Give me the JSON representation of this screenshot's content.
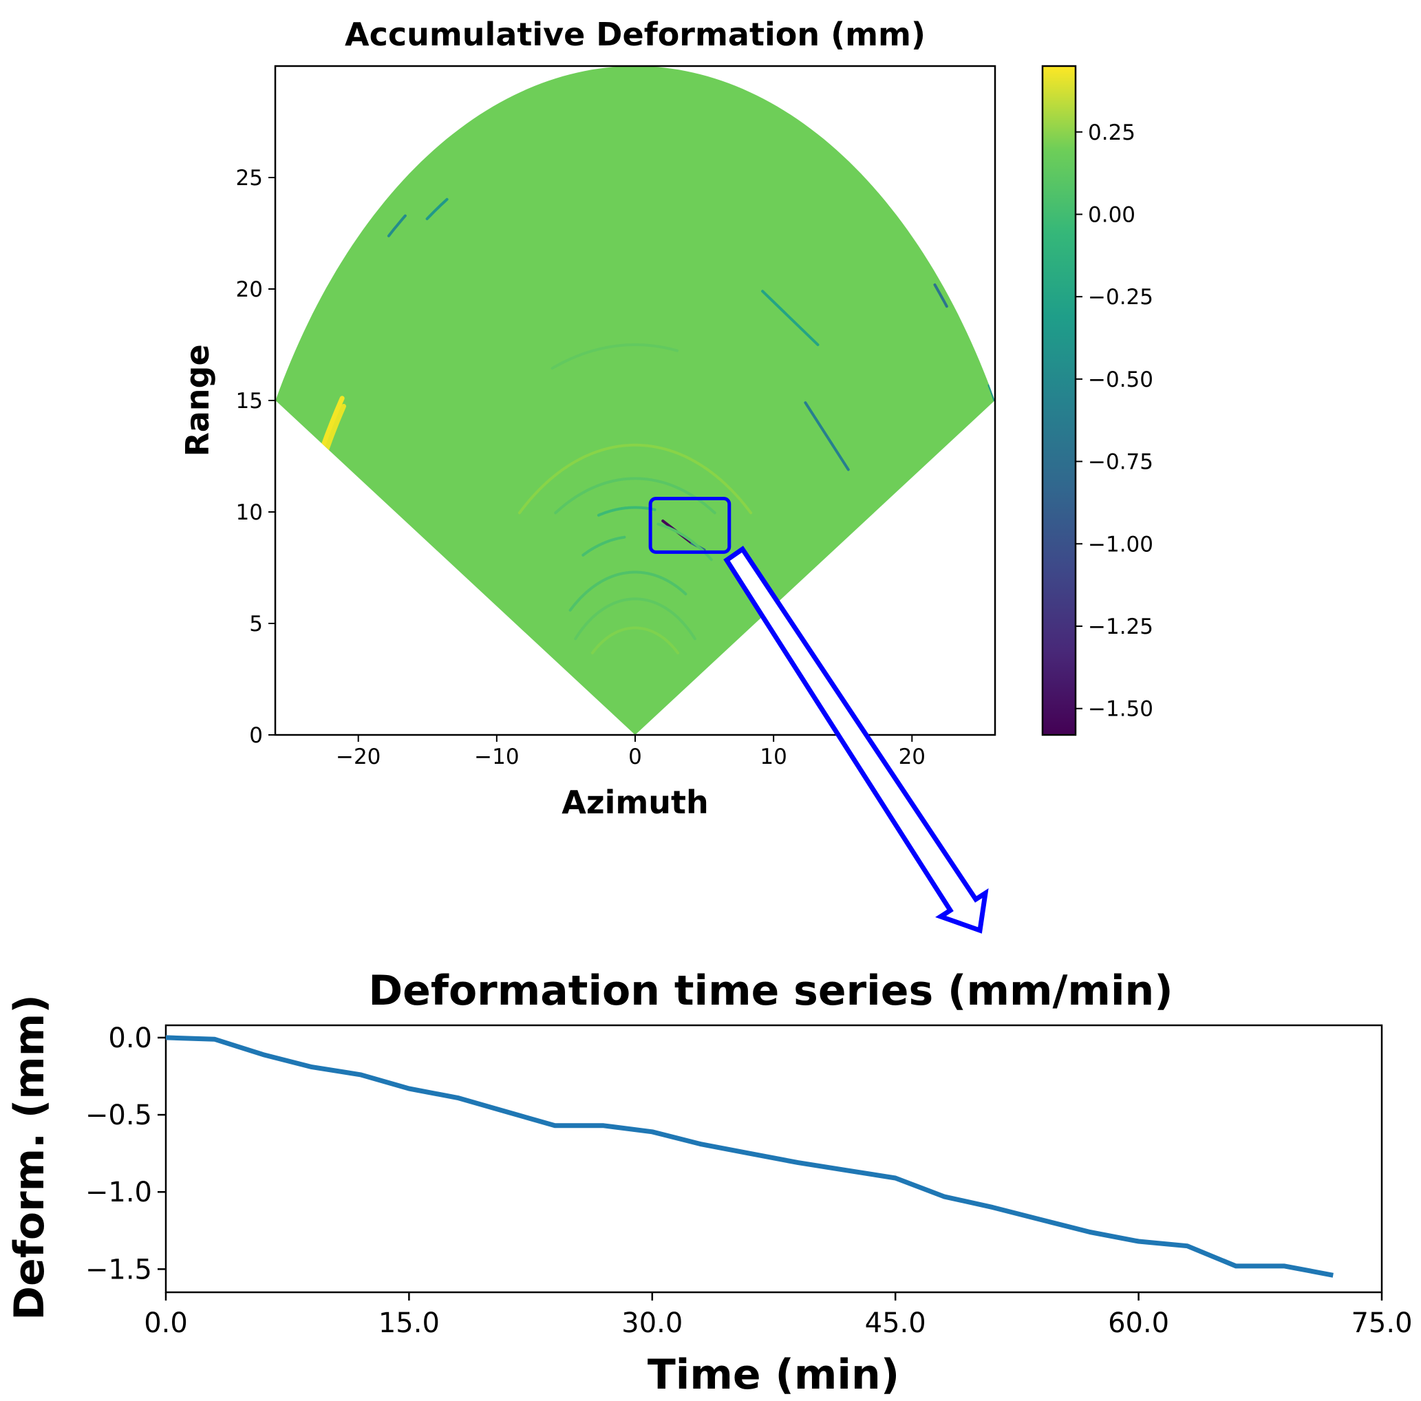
{
  "chart_data": [
    {
      "type": "heatmap",
      "title": "Accumulative Deformation (mm)",
      "xlabel": "Azimuth",
      "ylabel": "Range",
      "xlim": [
        -26,
        26
      ],
      "ylim": [
        0,
        30
      ],
      "x_ticks": [
        -20,
        -10,
        0,
        10,
        20
      ],
      "x_tick_labels": [
        "−20",
        "−10",
        "0",
        "10",
        "20"
      ],
      "y_ticks": [
        0,
        5,
        10,
        15,
        20,
        25
      ],
      "y_tick_labels": [
        "0",
        "5",
        "10",
        "15",
        "20",
        "25"
      ],
      "grid": false,
      "fan": {
        "max_range": 30,
        "half_angle_deg": 60
      },
      "colormap": "viridis",
      "background_value": 0.0,
      "colorbar": {
        "min": -1.58,
        "max": 0.45,
        "ticks": [
          0.25,
          0.0,
          -0.25,
          -0.5,
          -0.75,
          -1.0,
          -1.25,
          -1.5
        ],
        "tick_labels": [
          "0.25",
          "0.00",
          "−0.25",
          "−0.50",
          "−0.75",
          "−1.00",
          "−1.25",
          "−1.50"
        ]
      },
      "features": [
        {
          "kind": "arc",
          "r": 28.6,
          "a0": -38.5,
          "a1": -35.5,
          "value": -0.6
        },
        {
          "kind": "arc",
          "r": 27.6,
          "a0": -33.0,
          "a1": -29.5,
          "value": -0.5
        },
        {
          "kind": "arc",
          "r": 26.0,
          "a0": -63.5,
          "a1": -54.5,
          "value": 0.42
        },
        {
          "kind": "arc",
          "r": 25.7,
          "a0": -62.5,
          "a1": -55.0,
          "value": 0.38
        },
        {
          "kind": "arc",
          "r": 29.6,
          "a0": 47.0,
          "a1": 49.5,
          "value": -0.8
        },
        {
          "kind": "arc",
          "r": 30.0,
          "a0": 58.5,
          "a1": 60.0,
          "value": -0.5
        },
        {
          "kind": "line",
          "x1": 9.2,
          "y1": 19.9,
          "x2": 13.2,
          "y2": 17.5,
          "value": -0.4
        },
        {
          "kind": "line",
          "x1": 12.3,
          "y1": 14.9,
          "x2": 15.4,
          "y2": 11.9,
          "value": -0.7
        },
        {
          "kind": "line",
          "x1": 2.0,
          "y1": 9.6,
          "x2": 4.1,
          "y2": 8.6,
          "value": -1.55
        },
        {
          "kind": "line",
          "x1": 4.1,
          "y1": 8.6,
          "x2": 5.0,
          "y2": 8.3,
          "value": -0.9
        },
        {
          "kind": "arc",
          "r": 8.9,
          "a0": -25,
          "a1": -5,
          "value": -0.15
        },
        {
          "kind": "arc",
          "r": 10.2,
          "a0": -15,
          "a1": 8,
          "value": -0.2
        },
        {
          "kind": "arc",
          "r": 11.5,
          "a0": -30,
          "a1": 30,
          "value": -0.08
        },
        {
          "kind": "arc",
          "r": 13.0,
          "a0": -40,
          "a1": 40,
          "value": 0.08
        },
        {
          "kind": "arc",
          "r": 7.3,
          "a0": -40,
          "a1": 30,
          "value": -0.12
        },
        {
          "kind": "arc",
          "r": 6.1,
          "a0": -45,
          "a1": 45,
          "value": -0.06
        },
        {
          "kind": "arc",
          "r": 4.8,
          "a0": -40,
          "a1": 40,
          "value": 0.05
        },
        {
          "kind": "arc",
          "r": 17.5,
          "a0": -20,
          "a1": 10,
          "value": -0.05
        },
        {
          "kind": "arc",
          "r": 9.6,
          "a0": 10,
          "a1": 35,
          "value": -0.1
        }
      ],
      "annotation": {
        "box": {
          "x0": 1.1,
          "x1": 6.8,
          "y0": 8.2,
          "y1": 10.6
        },
        "color": "#0000ff"
      }
    },
    {
      "type": "line",
      "title": "Deformation time series (mm/min)",
      "xlabel": "Time (min)",
      "ylabel": "Deform. (mm)",
      "xlim": [
        0,
        75
      ],
      "ylim": [
        -1.65,
        0.08
      ],
      "x_ticks": [
        0,
        15,
        30,
        45,
        60,
        75
      ],
      "x_tick_labels": [
        "0.0",
        "15.0",
        "30.0",
        "45.0",
        "60.0",
        "75.0"
      ],
      "y_ticks": [
        0.0,
        -0.5,
        -1.0,
        -1.5
      ],
      "y_tick_labels": [
        "0.0",
        "−0.5",
        "−1.0",
        "−1.5"
      ],
      "grid": false,
      "series": [
        {
          "color": "#1f77b4",
          "x": [
            0,
            3,
            6,
            9,
            12,
            15,
            18,
            21,
            24,
            27,
            30,
            33,
            36,
            39,
            42,
            45,
            48,
            51,
            54,
            57,
            60,
            63,
            66,
            69,
            72
          ],
          "y": [
            0.0,
            -0.01,
            -0.11,
            -0.19,
            -0.24,
            -0.33,
            -0.39,
            -0.48,
            -0.57,
            -0.57,
            -0.61,
            -0.69,
            -0.75,
            -0.81,
            -0.86,
            -0.91,
            -1.03,
            -1.1,
            -1.18,
            -1.26,
            -1.32,
            -1.35,
            -1.48,
            -1.48,
            -1.54
          ]
        }
      ]
    }
  ]
}
